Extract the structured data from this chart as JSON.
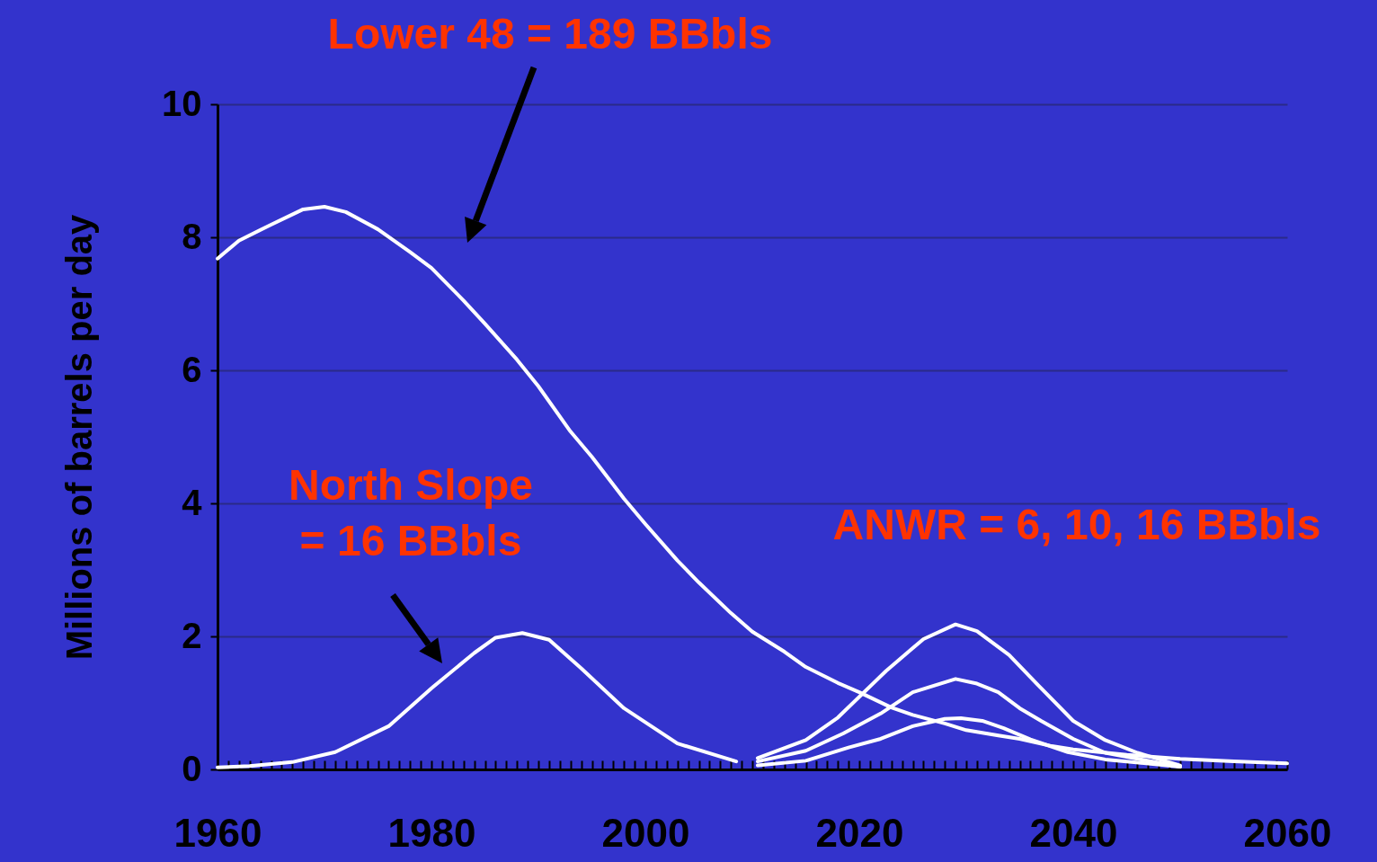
{
  "chart_data": {
    "type": "line",
    "ylabel": "Millions of barrels per day",
    "annotations": [
      "Lower 48 = 189 BBbls",
      "North Slope\n= 16 BBbls",
      "ANWR = 6, 10, 16 BBbls"
    ],
    "series": [
      {
        "color": "#ffffff",
        "x": [
          1960,
          1962,
          1965,
          1968,
          1970,
          1972,
          1975,
          1978,
          1980,
          1983,
          1985,
          1988,
          1990,
          1993,
          1995,
          1998,
          2000,
          2003,
          2005,
          2008,
          2010,
          2013,
          2015,
          2018,
          2020,
          2023,
          2025,
          2028,
          2030,
          2033,
          2035,
          2038,
          2040,
          2045,
          2050,
          2055,
          2060
        ],
        "values": [
          7.68,
          7.95,
          8.19,
          8.42,
          8.46,
          8.38,
          8.12,
          7.78,
          7.54,
          7.05,
          6.7,
          6.16,
          5.76,
          5.08,
          4.7,
          4.07,
          3.69,
          3.14,
          2.81,
          2.35,
          2.07,
          1.77,
          1.54,
          1.3,
          1.16,
          0.93,
          0.82,
          0.69,
          0.59,
          0.51,
          0.46,
          0.35,
          0.3,
          0.22,
          0.16,
          0.12,
          0.09
        ]
      },
      {
        "color": "#ffffff",
        "x": [
          1960,
          1963,
          1967,
          1971,
          1976,
          1980,
          1984,
          1986,
          1988.5,
          1991,
          1994,
          1998,
          2003,
          2008.5
        ],
        "values": [
          0.03,
          0.05,
          0.11,
          0.26,
          0.65,
          1.22,
          1.75,
          1.98,
          2.05,
          1.95,
          1.52,
          0.92,
          0.39,
          0.12
        ]
      },
      {
        "color": "#ffffff",
        "x": [
          2010.5,
          2015,
          2018,
          2022.5,
          2026,
          2029,
          2031,
          2034,
          2037,
          2040,
          2043,
          2046,
          2050
        ],
        "values": [
          0.17,
          0.44,
          0.78,
          1.48,
          1.96,
          2.18,
          2.08,
          1.72,
          1.22,
          0.73,
          0.44,
          0.25,
          0.06
        ]
      },
      {
        "color": "#ffffff",
        "x": [
          2010.5,
          2015,
          2018.5,
          2022,
          2025,
          2029,
          2031,
          2033,
          2035,
          2037,
          2040,
          2043,
          2050
        ],
        "values": [
          0.12,
          0.28,
          0.54,
          0.84,
          1.16,
          1.36,
          1.29,
          1.16,
          0.92,
          0.73,
          0.46,
          0.25,
          0.04
        ]
      },
      {
        "color": "#ffffff",
        "x": [
          2010.5,
          2015,
          2019,
          2022,
          2025,
          2028,
          2029.5,
          2031.5,
          2033.5,
          2036,
          2039.5,
          2043,
          2050
        ],
        "values": [
          0.06,
          0.13,
          0.33,
          0.46,
          0.65,
          0.76,
          0.77,
          0.73,
          0.62,
          0.45,
          0.26,
          0.15,
          0.04
        ]
      }
    ],
    "xlim": [
      1960,
      2060
    ],
    "ylim": [
      0,
      10
    ],
    "yticks": [
      0,
      2,
      4,
      6,
      8,
      10
    ],
    "xticks": [
      1960,
      {
        "value": 1961,
        "label": null
      },
      {
        "value": 1962,
        "label": null
      },
      {
        "value": 1963,
        "label": null
      },
      {
        "value": 1964,
        "label": null
      },
      {
        "value": 1965,
        "label": null
      },
      {
        "value": 1966,
        "label": null
      },
      {
        "value": 1967,
        "label": null
      },
      {
        "value": 1968,
        "label": null
      },
      {
        "value": 1969,
        "label": null
      },
      {
        "value": 1970,
        "label": null
      },
      {
        "value": 1971,
        "label": null
      },
      {
        "value": 1972,
        "label": null
      },
      {
        "value": 1973,
        "label": null
      },
      {
        "value": 1974,
        "label": null
      },
      {
        "value": 1975,
        "label": null
      },
      {
        "value": 1976,
        "label": null
      },
      {
        "value": 1977,
        "label": null
      },
      {
        "value": 1978,
        "label": null
      },
      {
        "value": 1979,
        "label": null
      },
      1980,
      {
        "value": 1981,
        "label": null
      },
      {
        "value": 1982,
        "label": null
      },
      {
        "value": 1983,
        "label": null
      },
      {
        "value": 1984,
        "label": null
      },
      {
        "value": 1985,
        "label": null
      },
      {
        "value": 1986,
        "label": null
      },
      {
        "value": 1987,
        "label": null
      },
      {
        "value": 1988,
        "label": null
      },
      {
        "value": 1989,
        "label": null
      },
      {
        "value": 1990,
        "label": null
      },
      {
        "value": 1991,
        "label": null
      },
      {
        "value": 1992,
        "label": null
      },
      {
        "value": 1993,
        "label": null
      },
      {
        "value": 1994,
        "label": null
      },
      {
        "value": 1995,
        "label": null
      },
      {
        "value": 1996,
        "label": null
      },
      {
        "value": 1997,
        "label": null
      },
      {
        "value": 1998,
        "label": null
      },
      {
        "value": 1999,
        "label": null
      },
      2000,
      {
        "value": 2001,
        "label": null
      },
      {
        "value": 2002,
        "label": null
      },
      {
        "value": 2003,
        "label": null
      },
      {
        "value": 2004,
        "label": null
      },
      {
        "value": 2005,
        "label": null
      },
      {
        "value": 2006,
        "label": null
      },
      {
        "value": 2007,
        "label": null
      },
      {
        "value": 2008,
        "label": null
      },
      {
        "value": 2009,
        "label": null
      },
      {
        "value": 2010,
        "label": null
      },
      {
        "value": 2011,
        "label": null
      },
      {
        "value": 2012,
        "label": null
      },
      {
        "value": 2013,
        "label": null
      },
      {
        "value": 2014,
        "label": null
      },
      {
        "value": 2015,
        "label": null
      },
      {
        "value": 2016,
        "label": null
      },
      {
        "value": 2017,
        "label": null
      },
      {
        "value": 2018,
        "label": null
      },
      {
        "value": 2019,
        "label": null
      },
      2020,
      {
        "value": 2021,
        "label": null
      },
      {
        "value": 2022,
        "label": null
      },
      {
        "value": 2023,
        "label": null
      },
      {
        "value": 2024,
        "label": null
      },
      {
        "value": 2025,
        "label": null
      },
      {
        "value": 2026,
        "label": null
      },
      {
        "value": 2027,
        "label": null
      },
      {
        "value": 2028,
        "label": null
      },
      {
        "value": 2029,
        "label": null
      },
      {
        "value": 2030,
        "label": null
      },
      {
        "value": 2031,
        "label": null
      },
      {
        "value": 2032,
        "label": null
      },
      {
        "value": 2033,
        "label": null
      },
      {
        "value": 2034,
        "label": null
      },
      {
        "value": 2035,
        "label": null
      },
      {
        "value": 2036,
        "label": null
      },
      {
        "value": 2037,
        "label": null
      },
      {
        "value": 2038,
        "label": null
      },
      {
        "value": 2039,
        "label": null
      },
      2040,
      {
        "value": 2041,
        "label": null
      },
      {
        "value": 2042,
        "label": null
      },
      {
        "value": 2043,
        "label": null
      },
      {
        "value": 2044,
        "label": null
      },
      {
        "value": 2045,
        "label": null
      },
      {
        "value": 2046,
        "label": null
      },
      {
        "value": 2047,
        "label": null
      },
      {
        "value": 2048,
        "label": null
      },
      {
        "value": 2049,
        "label": null
      },
      {
        "value": 2050,
        "label": null
      },
      {
        "value": 2051,
        "label": null
      },
      {
        "value": 2052,
        "label": null
      },
      {
        "value": 2053,
        "label": null
      },
      {
        "value": 2054,
        "label": null
      },
      {
        "value": 2055,
        "label": null
      },
      {
        "value": 2056,
        "label": null
      },
      {
        "value": 2057,
        "label": null
      },
      {
        "value": 2058,
        "label": null
      },
      {
        "value": 2059,
        "label": null
      },
      2060
    ],
    "grid": "y",
    "legend": false,
    "marker": "none",
    "line_style": "solid"
  }
}
